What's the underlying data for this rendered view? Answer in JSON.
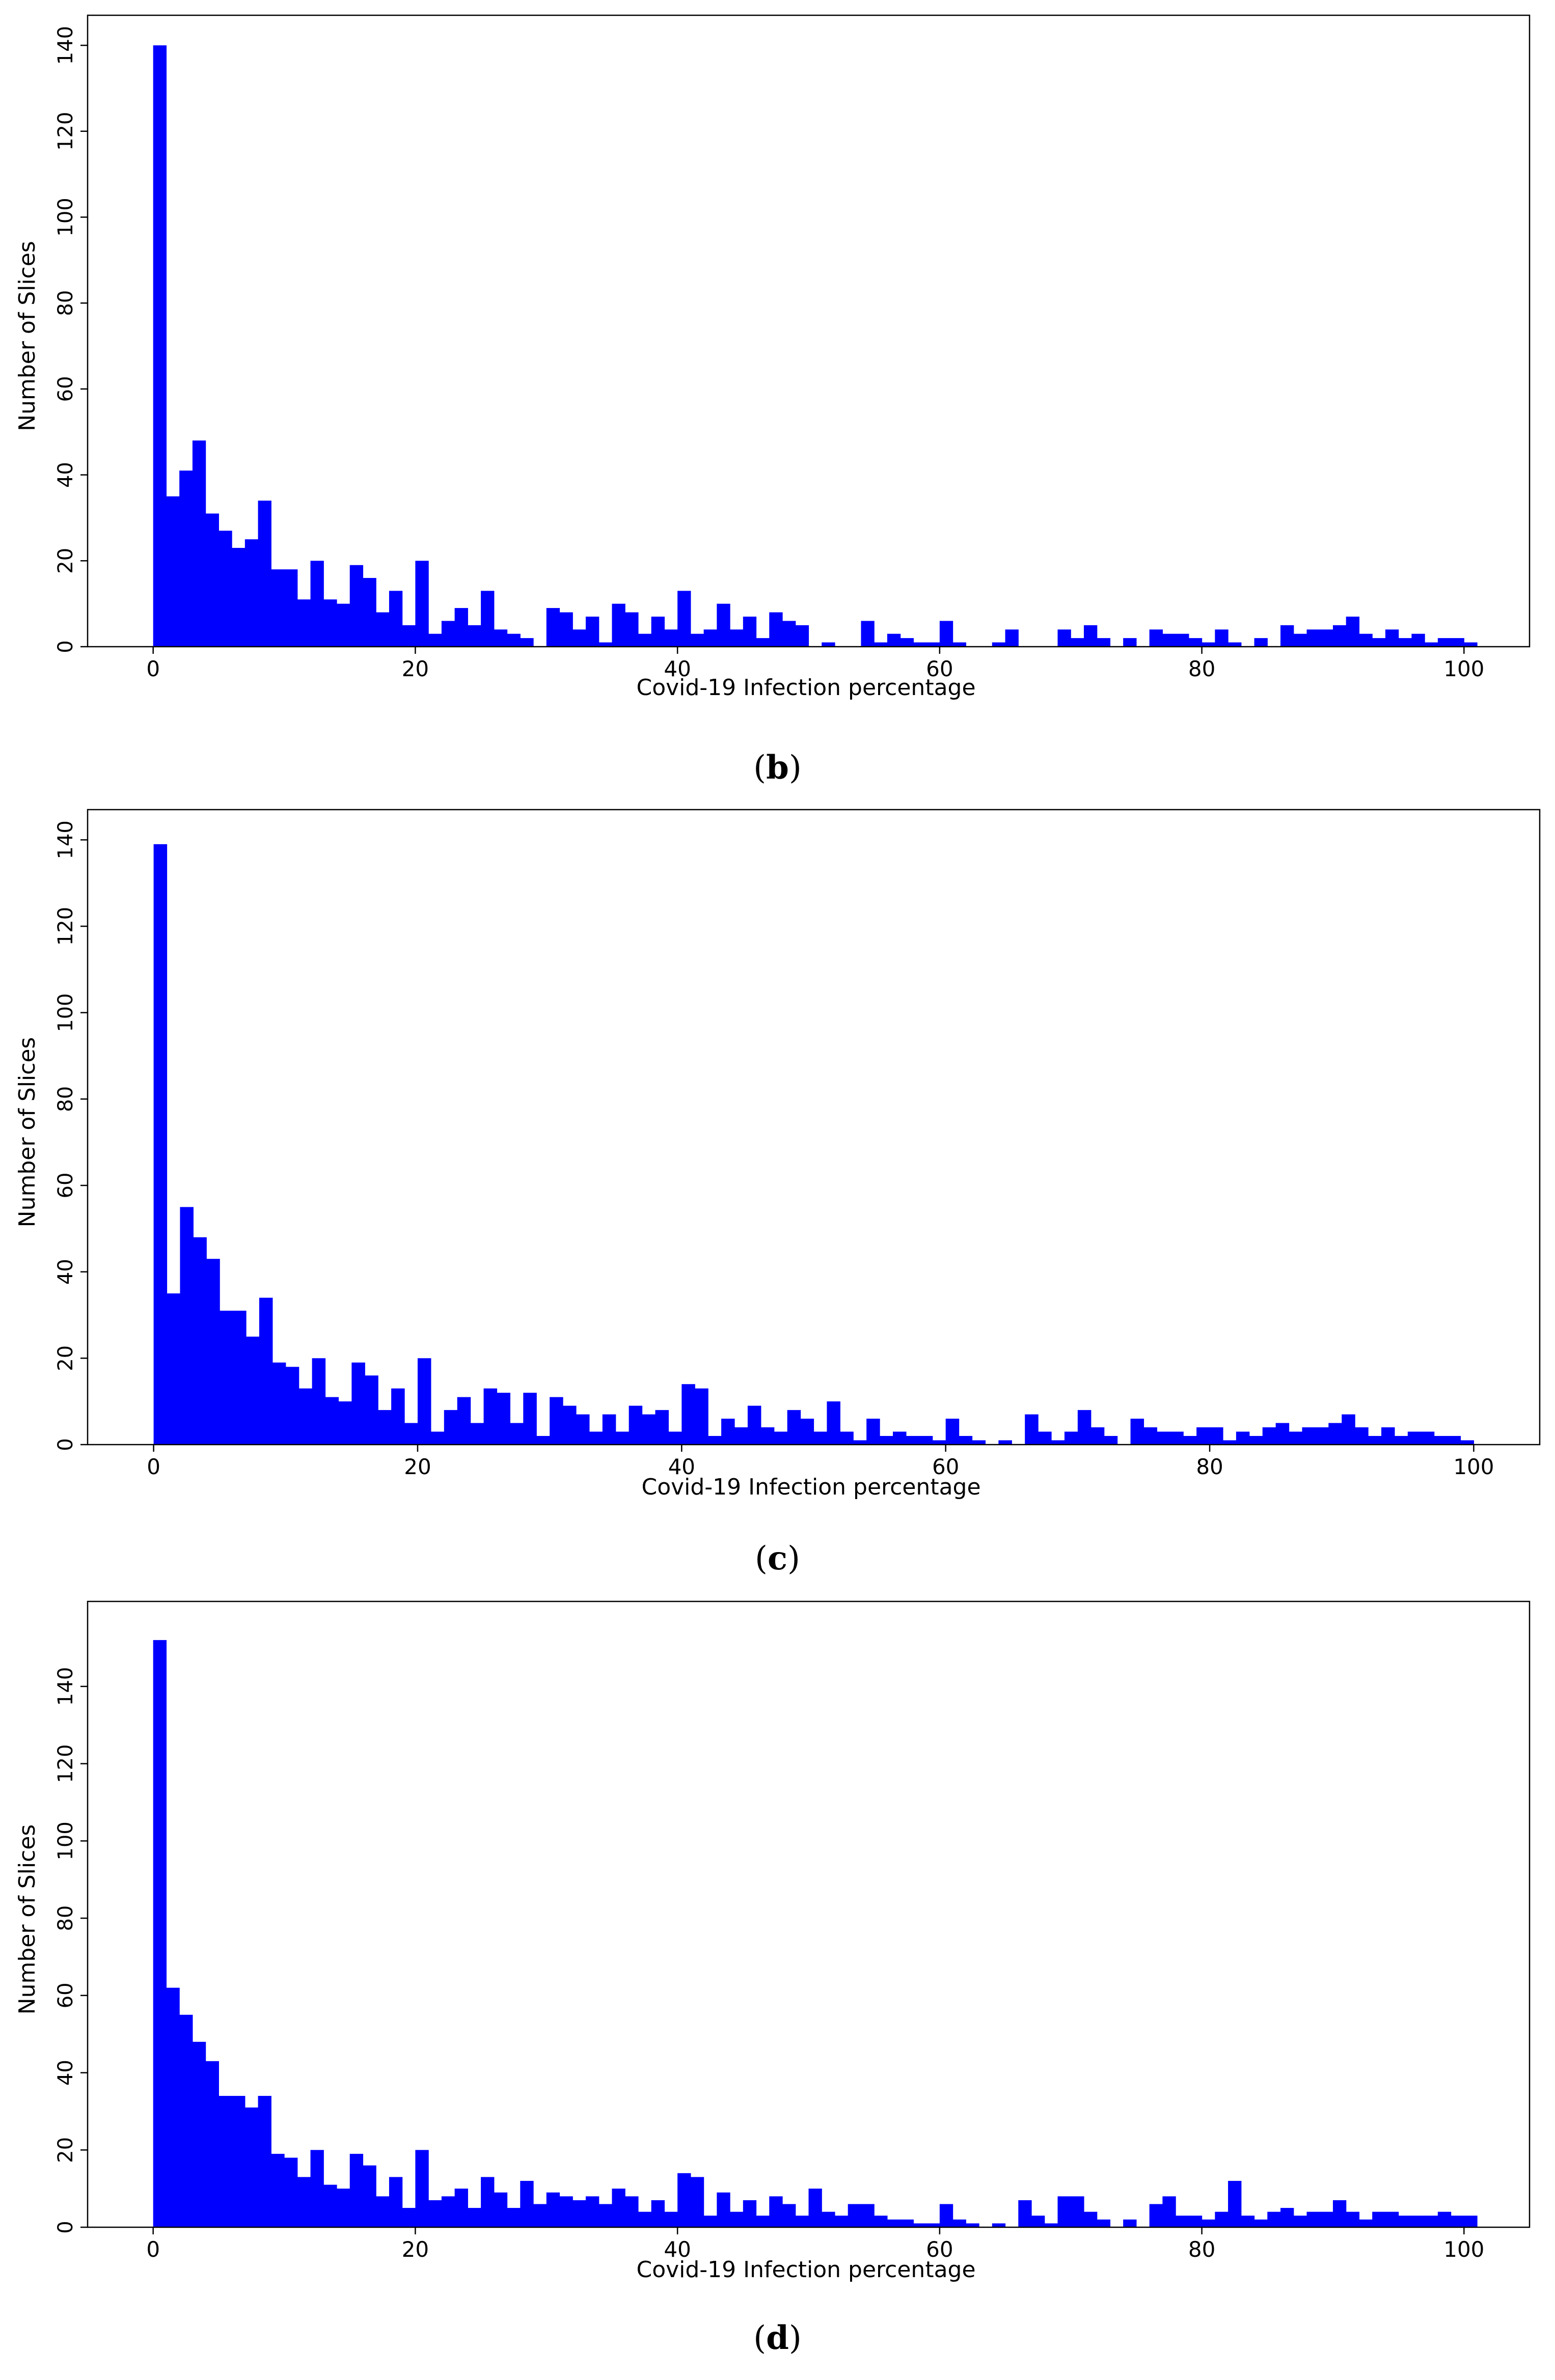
{
  "chart_data": [
    {
      "type": "bar",
      "panel": "b",
      "caption_open": "(",
      "caption_letter": "b",
      "caption_close": ")",
      "xlabel": "Covid-19 Infection percentage",
      "ylabel": "Number of Slices",
      "xlim": [
        -5,
        105
      ],
      "ylim": [
        0,
        147
      ],
      "xticks": [
        0,
        20,
        40,
        60,
        80,
        100
      ],
      "yticks": [
        0,
        20,
        40,
        60,
        80,
        100,
        120,
        140
      ],
      "bin_width": 1,
      "color": "#0000ff",
      "grid": false,
      "values": [
        140,
        35,
        41,
        48,
        31,
        27,
        23,
        25,
        34,
        18,
        18,
        11,
        20,
        11,
        10,
        19,
        16,
        8,
        13,
        5,
        20,
        3,
        6,
        9,
        5,
        13,
        4,
        3,
        2,
        0,
        9,
        8,
        4,
        7,
        1,
        10,
        8,
        3,
        7,
        4,
        13,
        3,
        4,
        10,
        4,
        7,
        2,
        8,
        6,
        5,
        0,
        1,
        0,
        0,
        6,
        1,
        3,
        2,
        1,
        1,
        6,
        1,
        0,
        0,
        1,
        4,
        0,
        0,
        0,
        4,
        2,
        5,
        2,
        0,
        2,
        0,
        4,
        3,
        3,
        2,
        1,
        4,
        1,
        0,
        2,
        0,
        5,
        3,
        4,
        4,
        5,
        7,
        3,
        2,
        4,
        2,
        3,
        1,
        2,
        2,
        1
      ]
    },
    {
      "type": "bar",
      "panel": "c",
      "caption_open": "(",
      "caption_letter": "c",
      "caption_close": ")",
      "xlabel": "Covid-19 Infection percentage",
      "ylabel": "Number of Slices",
      "xlim": [
        -5,
        105
      ],
      "ylim": [
        0,
        147
      ],
      "xticks": [
        0,
        20,
        40,
        60,
        80,
        100
      ],
      "yticks": [
        0,
        20,
        40,
        60,
        80,
        100,
        120,
        140
      ],
      "bin_width": 1,
      "color": "#0000ff",
      "grid": false,
      "values": [
        139,
        35,
        55,
        48,
        43,
        31,
        31,
        25,
        34,
        19,
        18,
        13,
        20,
        11,
        10,
        19,
        16,
        8,
        13,
        5,
        20,
        3,
        8,
        11,
        5,
        13,
        12,
        5,
        12,
        2,
        11,
        9,
        7,
        3,
        7,
        3,
        9,
        7,
        8,
        3,
        14,
        13,
        2,
        6,
        4,
        9,
        4,
        3,
        8,
        6,
        3,
        10,
        3,
        1,
        6,
        2,
        3,
        2,
        2,
        1,
        6,
        2,
        1,
        0,
        1,
        0,
        7,
        3,
        1,
        3,
        8,
        4,
        2,
        0,
        6,
        4,
        3,
        3,
        2,
        4,
        4,
        1,
        3,
        2,
        4,
        5,
        3,
        4,
        4,
        5,
        7,
        4,
        2,
        4,
        2,
        3,
        3,
        2,
        2,
        1,
        0
      ]
    },
    {
      "type": "bar",
      "panel": "d",
      "caption_open": "(",
      "caption_letter": "d",
      "caption_close": ")",
      "xlabel": "Covid-19 Infection percentage",
      "ylabel": "Number of Slices",
      "xlim": [
        -5,
        105
      ],
      "ylim": [
        0,
        162
      ],
      "xticks": [
        0,
        20,
        40,
        60,
        80,
        100
      ],
      "yticks": [
        0,
        20,
        40,
        60,
        80,
        100,
        120,
        140
      ],
      "bin_width": 1,
      "color": "#0000ff",
      "grid": false,
      "values": [
        152,
        62,
        55,
        48,
        43,
        34,
        34,
        31,
        34,
        19,
        18,
        13,
        20,
        11,
        10,
        19,
        16,
        8,
        13,
        5,
        20,
        7,
        8,
        10,
        5,
        13,
        9,
        5,
        12,
        6,
        9,
        8,
        7,
        8,
        6,
        10,
        8,
        4,
        7,
        4,
        14,
        13,
        3,
        9,
        4,
        7,
        3,
        8,
        6,
        3,
        10,
        4,
        3,
        6,
        6,
        3,
        2,
        2,
        1,
        1,
        6,
        2,
        1,
        0,
        1,
        0,
        7,
        3,
        1,
        8,
        8,
        4,
        2,
        0,
        2,
        0,
        6,
        8,
        3,
        3,
        2,
        4,
        12,
        3,
        2,
        4,
        5,
        3,
        4,
        4,
        7,
        4,
        2,
        4,
        4,
        3,
        3,
        3,
        4,
        3,
        3
      ]
    }
  ]
}
